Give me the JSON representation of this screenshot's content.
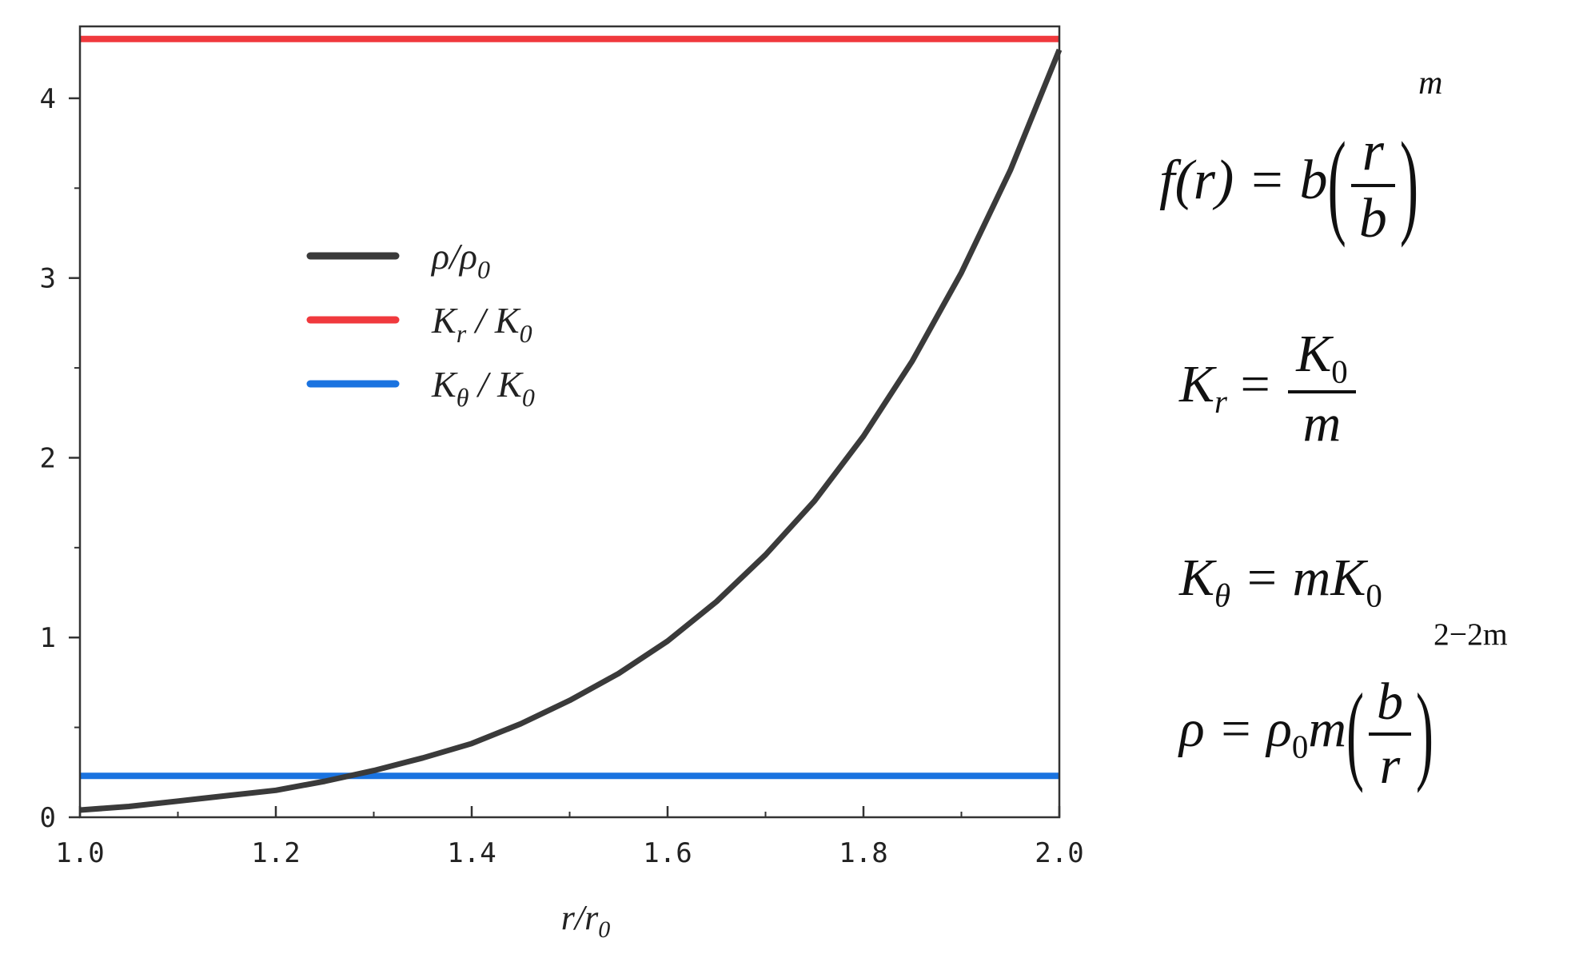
{
  "chart_data": {
    "type": "line",
    "xlabel": "r/r0",
    "xlabel_main": "r/r",
    "xlabel_sub": "0",
    "xlim": [
      1.0,
      2.0
    ],
    "ylim": [
      0,
      4.4
    ],
    "xticks": [
      "1.0",
      "1.2",
      "1.4",
      "1.6",
      "1.8",
      "2.0"
    ],
    "xtick_values": [
      1.0,
      1.2,
      1.4,
      1.6,
      1.8,
      2.0
    ],
    "yticks": [
      "0",
      "1",
      "2",
      "3",
      "4"
    ],
    "ytick_values": [
      0,
      1,
      2,
      3,
      4
    ],
    "grid": false,
    "legend_placement": "upper-left-center",
    "series": [
      {
        "name": "ρ/ρ0",
        "color": "#3a3a3a",
        "x": [
          1.0,
          1.05,
          1.1,
          1.15,
          1.2,
          1.25,
          1.3,
          1.35,
          1.4,
          1.45,
          1.5,
          1.55,
          1.6,
          1.65,
          1.7,
          1.75,
          1.8,
          1.85,
          1.9,
          1.95,
          2.0
        ],
        "y": [
          0.04,
          0.06,
          0.09,
          0.12,
          0.15,
          0.2,
          0.26,
          0.33,
          0.41,
          0.52,
          0.65,
          0.8,
          0.98,
          1.2,
          1.46,
          1.76,
          2.12,
          2.54,
          3.03,
          3.6,
          4.27
        ]
      },
      {
        "name": "Kr / K0",
        "color": "#f0393d",
        "x": [
          1.0,
          2.0
        ],
        "y": [
          4.33,
          4.33
        ]
      },
      {
        "name": "Kθ / K0",
        "color": "#1a73e0",
        "x": [
          1.0,
          2.0
        ],
        "y": [
          0.23,
          0.23
        ]
      }
    ],
    "legend": [
      {
        "main": "ρ/ρ",
        "sub": "0",
        "rest": "",
        "sub2": "",
        "color": "#3a3a3a"
      },
      {
        "main": "K",
        "sub": "r",
        "rest": " / K",
        "sub2": "0",
        "color": "#f0393d"
      },
      {
        "main": "K",
        "sub": "θ",
        "rest": " / K",
        "sub2": "0",
        "color": "#1a73e0"
      }
    ]
  },
  "formulas": {
    "f": {
      "lhs": "f(r) = b",
      "num": "r",
      "den": "b",
      "exp": "m"
    },
    "kr": {
      "lhs": "K",
      "lhs_sub": "r",
      "eq": " = ",
      "num": "K",
      "num_sub": "0",
      "den": "m"
    },
    "kt": {
      "lhs": "K",
      "lhs_sub": "θ",
      "rhs": " = mK",
      "rhs_sub": "0"
    },
    "rho": {
      "lhs": "ρ = ρ",
      "lhs_sub": "0",
      "lhs_rest": "m",
      "num": "b",
      "den": "r",
      "exp": "2−2m"
    }
  }
}
